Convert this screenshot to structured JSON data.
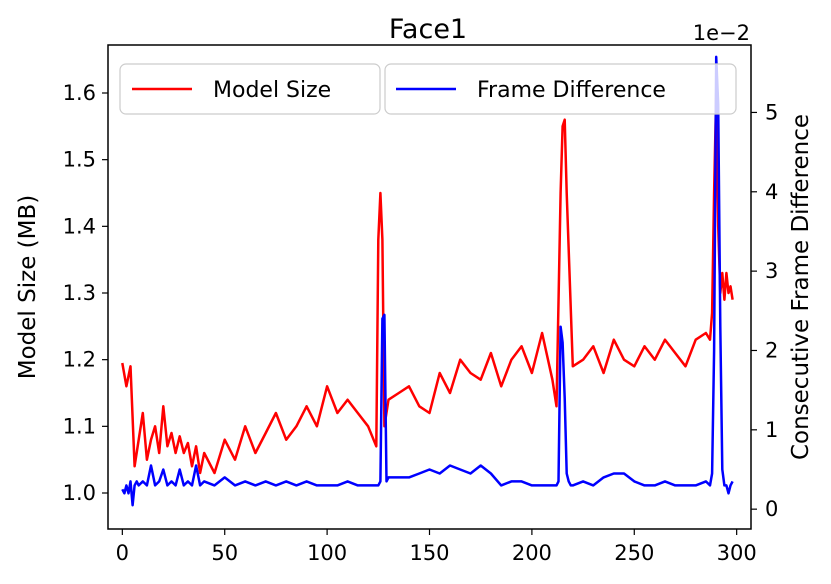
{
  "chart_data": {
    "type": "line",
    "title": "Face1",
    "xlabel": "",
    "ylabel_left": "Model Size (MB)",
    "ylabel_right": "Consecutive Frame Difference",
    "right_offset_text": "1e−2",
    "xlim": [
      -7,
      307
    ],
    "ylim_left": [
      0.946,
      1.672
    ],
    "ylim_right": [
      -0.25,
      5.85
    ],
    "x_ticks": [
      0,
      50,
      100,
      150,
      200,
      250,
      300
    ],
    "y_ticks_left": [
      1.0,
      1.1,
      1.2,
      1.3,
      1.4,
      1.5,
      1.6
    ],
    "y_ticks_left_labels": [
      "1.0",
      "1.1",
      "1.2",
      "1.3",
      "1.4",
      "1.5",
      "1.6"
    ],
    "y_ticks_right": [
      0,
      1,
      2,
      3,
      4,
      5
    ],
    "y_ticks_right_labels": [
      "0",
      "1",
      "2",
      "3",
      "4",
      "5"
    ],
    "grid": false,
    "legend_placement": "top",
    "series": [
      {
        "name": "Model Size",
        "axis": "left",
        "color": "#ff0000",
        "x": [
          0,
          2,
          4,
          6,
          10,
          12,
          14,
          16,
          18,
          20,
          22,
          24,
          26,
          28,
          30,
          32,
          34,
          36,
          38,
          40,
          45,
          50,
          55,
          60,
          65,
          70,
          75,
          80,
          85,
          90,
          95,
          100,
          105,
          110,
          115,
          120,
          124,
          125,
          126,
          127,
          128,
          130,
          135,
          140,
          145,
          150,
          155,
          160,
          165,
          170,
          175,
          180,
          185,
          190,
          195,
          200,
          205,
          210,
          212,
          214,
          215,
          216,
          217,
          220,
          225,
          230,
          235,
          240,
          245,
          250,
          255,
          260,
          265,
          270,
          275,
          280,
          285,
          287,
          288,
          289,
          290,
          291,
          292,
          293,
          294,
          295,
          296,
          297,
          298
        ],
        "values": [
          1.195,
          1.16,
          1.19,
          1.04,
          1.12,
          1.05,
          1.08,
          1.1,
          1.06,
          1.13,
          1.07,
          1.09,
          1.06,
          1.085,
          1.06,
          1.075,
          1.04,
          1.07,
          1.03,
          1.06,
          1.03,
          1.08,
          1.05,
          1.1,
          1.06,
          1.09,
          1.12,
          1.08,
          1.1,
          1.13,
          1.1,
          1.16,
          1.12,
          1.14,
          1.12,
          1.1,
          1.07,
          1.38,
          1.45,
          1.38,
          1.1,
          1.14,
          1.15,
          1.16,
          1.13,
          1.12,
          1.18,
          1.15,
          1.2,
          1.18,
          1.17,
          1.21,
          1.16,
          1.2,
          1.22,
          1.18,
          1.24,
          1.17,
          1.13,
          1.45,
          1.55,
          1.56,
          1.45,
          1.19,
          1.2,
          1.22,
          1.18,
          1.23,
          1.2,
          1.19,
          1.22,
          1.2,
          1.23,
          1.21,
          1.19,
          1.23,
          1.24,
          1.23,
          1.27,
          1.45,
          1.6,
          1.4,
          1.3,
          1.33,
          1.29,
          1.33,
          1.3,
          1.31,
          1.29
        ]
      },
      {
        "name": "Frame Difference",
        "axis": "right",
        "color": "#0000ff",
        "x": [
          0,
          1,
          2,
          3,
          4,
          5,
          6,
          7,
          8,
          10,
          12,
          14,
          16,
          18,
          20,
          22,
          24,
          26,
          28,
          30,
          32,
          34,
          36,
          38,
          40,
          45,
          50,
          55,
          60,
          65,
          70,
          75,
          80,
          85,
          90,
          95,
          100,
          105,
          110,
          115,
          120,
          125,
          126,
          127,
          128,
          129,
          130,
          135,
          140,
          145,
          150,
          155,
          160,
          165,
          170,
          175,
          180,
          185,
          190,
          195,
          200,
          205,
          210,
          212,
          213,
          214,
          215,
          216,
          217,
          218,
          219,
          220,
          225,
          230,
          235,
          240,
          245,
          250,
          255,
          260,
          265,
          270,
          275,
          280,
          285,
          287,
          288,
          289,
          290,
          291,
          292,
          293,
          294,
          295,
          296,
          297,
          298
        ],
        "values": [
          0.25,
          0.2,
          0.3,
          0.2,
          0.35,
          0.05,
          0.3,
          0.35,
          0.3,
          0.35,
          0.3,
          0.55,
          0.3,
          0.35,
          0.5,
          0.3,
          0.35,
          0.3,
          0.5,
          0.3,
          0.35,
          0.3,
          0.55,
          0.3,
          0.35,
          0.3,
          0.4,
          0.3,
          0.35,
          0.3,
          0.35,
          0.3,
          0.35,
          0.3,
          0.35,
          0.3,
          0.3,
          0.3,
          0.35,
          0.3,
          0.3,
          0.3,
          0.35,
          2.4,
          2.45,
          0.35,
          0.4,
          0.4,
          0.4,
          0.45,
          0.5,
          0.45,
          0.55,
          0.5,
          0.45,
          0.55,
          0.45,
          0.3,
          0.35,
          0.35,
          0.3,
          0.3,
          0.3,
          0.3,
          0.35,
          2.3,
          2.1,
          1.4,
          0.45,
          0.35,
          0.3,
          0.3,
          0.35,
          0.3,
          0.4,
          0.45,
          0.45,
          0.35,
          0.3,
          0.3,
          0.35,
          0.3,
          0.3,
          0.3,
          0.35,
          0.3,
          0.45,
          2.0,
          5.7,
          5.1,
          2.3,
          0.5,
          0.3,
          0.3,
          0.2,
          0.3,
          0.35
        ]
      }
    ]
  }
}
